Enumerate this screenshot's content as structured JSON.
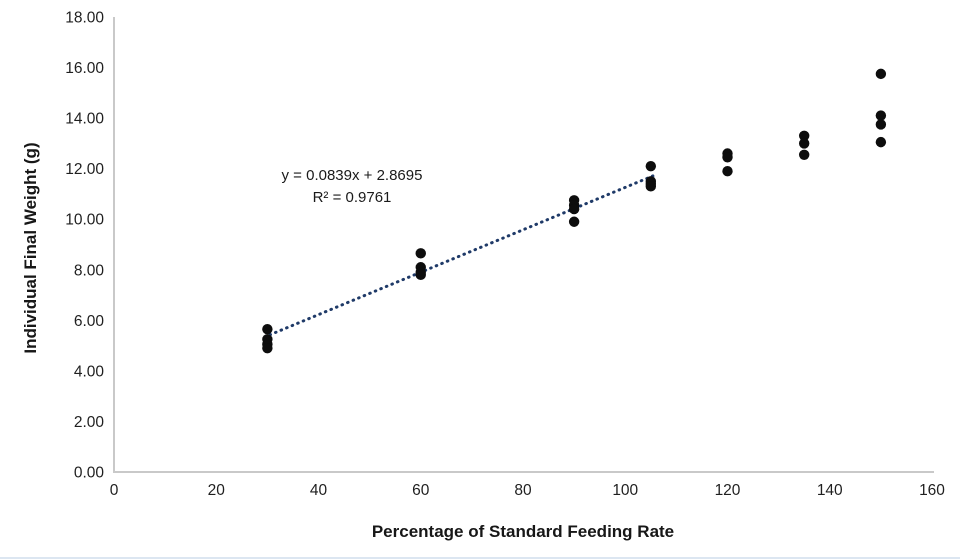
{
  "figure": {
    "background": "#ffffff",
    "bottom_strip_color": "#dce6f1"
  },
  "chart_data": {
    "type": "scatter",
    "title": "",
    "xlabel": "Percentage of Standard Feeding Rate",
    "ylabel": "Individual Final Weight (g)",
    "xlim": [
      0,
      160
    ],
    "ylim": [
      0,
      18
    ],
    "grid": false,
    "legend": "none",
    "x_ticks": [
      0,
      20,
      40,
      60,
      80,
      100,
      120,
      140,
      160
    ],
    "x_tick_labels": [
      "0",
      "20",
      "40",
      "60",
      "80",
      "100",
      "120",
      "140",
      "160"
    ],
    "y_ticks": [
      0,
      2,
      4,
      6,
      8,
      10,
      12,
      14,
      16,
      18
    ],
    "y_tick_labels": [
      "0.00",
      "2.00",
      "4.00",
      "6.00",
      "8.00",
      "10.00",
      "12.00",
      "14.00",
      "16.00",
      "18.00"
    ],
    "points": [
      {
        "x": 30,
        "y": 5.65
      },
      {
        "x": 30,
        "y": 5.25
      },
      {
        "x": 30,
        "y": 5.05
      },
      {
        "x": 30,
        "y": 4.9
      },
      {
        "x": 60,
        "y": 8.65
      },
      {
        "x": 60,
        "y": 8.1
      },
      {
        "x": 60,
        "y": 7.9
      },
      {
        "x": 60,
        "y": 7.8
      },
      {
        "x": 90,
        "y": 10.75
      },
      {
        "x": 90,
        "y": 10.55
      },
      {
        "x": 90,
        "y": 10.4
      },
      {
        "x": 90,
        "y": 9.9
      },
      {
        "x": 105,
        "y": 12.1
      },
      {
        "x": 105,
        "y": 11.5
      },
      {
        "x": 105,
        "y": 11.4
      },
      {
        "x": 105,
        "y": 11.3
      },
      {
        "x": 120,
        "y": 12.6
      },
      {
        "x": 120,
        "y": 12.45
      },
      {
        "x": 120,
        "y": 11.9
      },
      {
        "x": 135,
        "y": 13.3
      },
      {
        "x": 135,
        "y": 13.0
      },
      {
        "x": 135,
        "y": 12.55
      },
      {
        "x": 150,
        "y": 15.75
      },
      {
        "x": 150,
        "y": 14.1
      },
      {
        "x": 150,
        "y": 13.75
      },
      {
        "x": 150,
        "y": 13.05
      }
    ],
    "marker": {
      "shape": "circle",
      "color": "#0d0d0d",
      "radius": 5.2
    },
    "trendline": {
      "slope": 0.0839,
      "intercept": 2.8695,
      "x_start": 30.5,
      "x_end": 105.5,
      "style": "dotted",
      "color": "#1f3a68",
      "equation_label": "y = 0.0839x + 2.8695",
      "r_squared_label": "R² = 0.9761"
    },
    "axis_color": "#c9c9c9",
    "text_color": "#1f1f1f"
  }
}
